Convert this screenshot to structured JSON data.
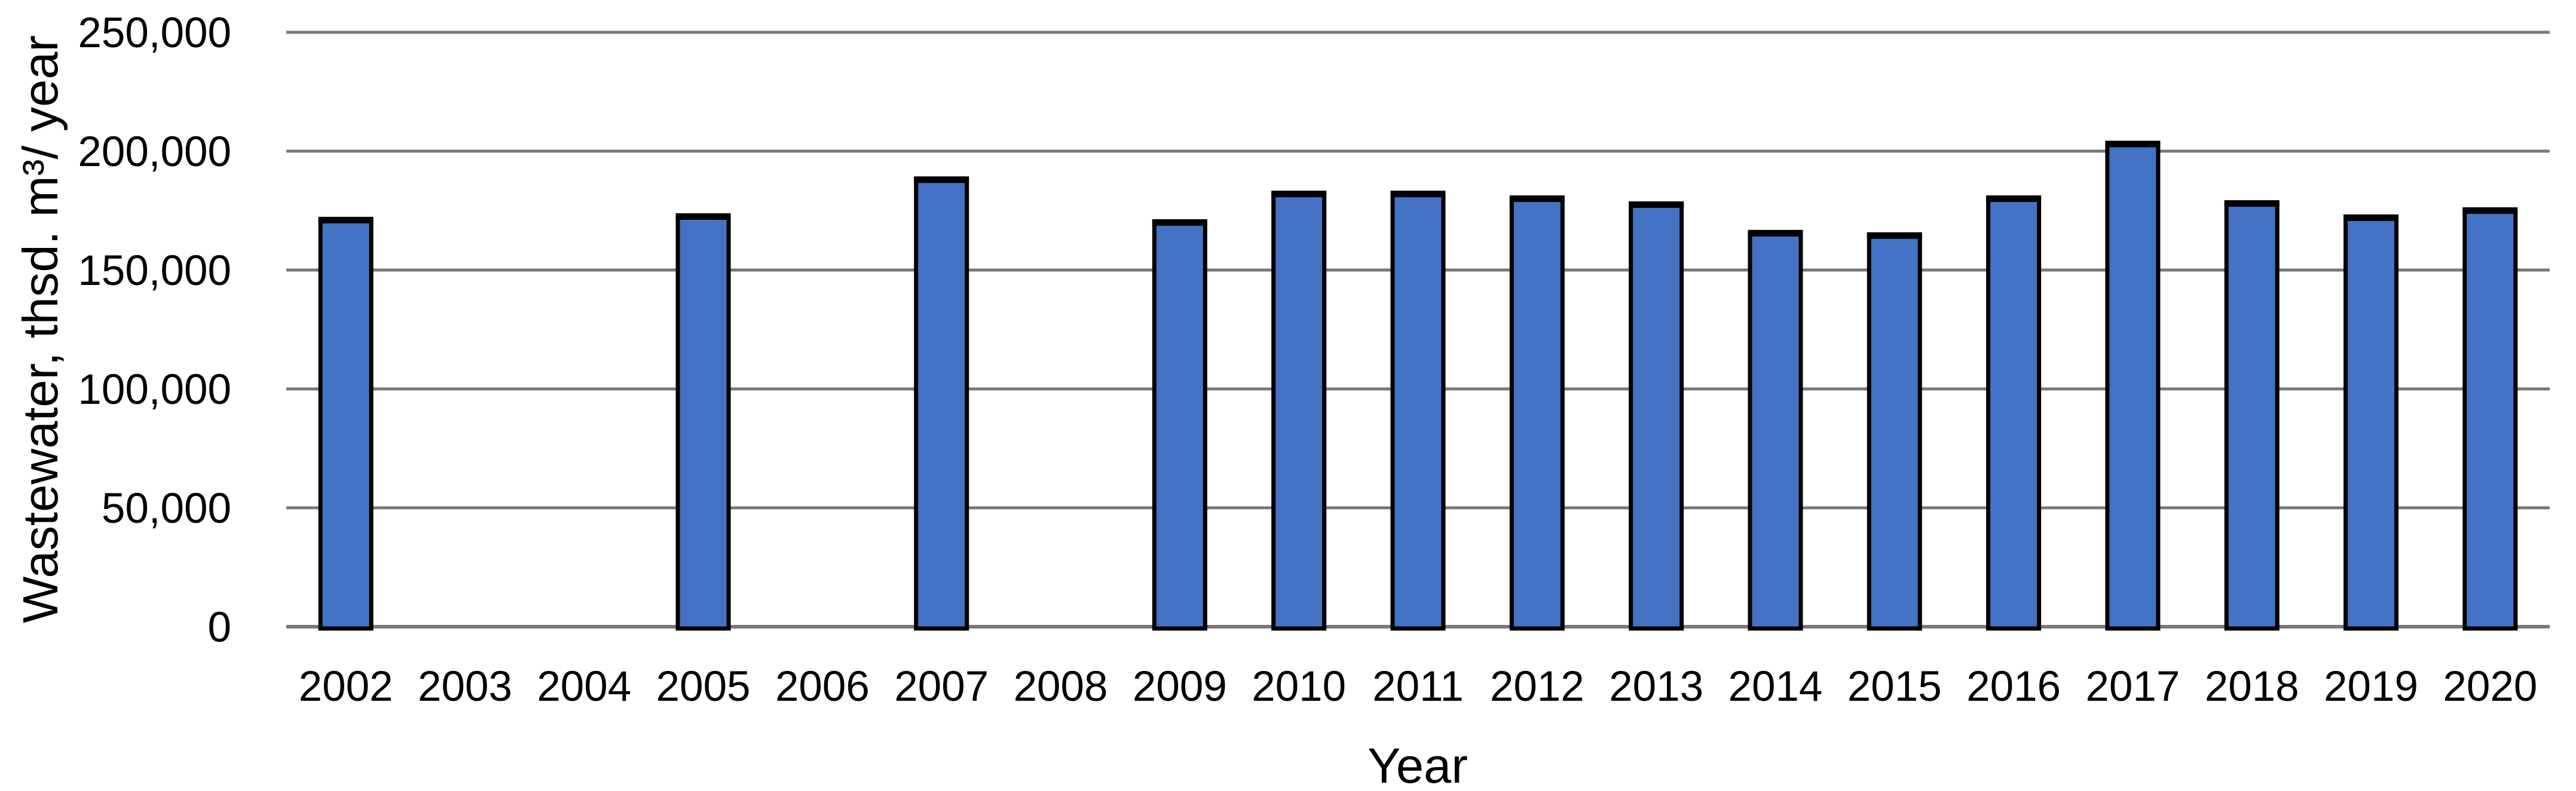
{
  "chart_data": {
    "type": "bar",
    "title": "",
    "xlabel": "Year",
    "ylabel": "Wastewater, thsd. m³/ year",
    "categories": [
      "2002",
      "2003",
      "2004",
      "2005",
      "2006",
      "2007",
      "2008",
      "2009",
      "2010",
      "2011",
      "2012",
      "2013",
      "2014",
      "2015",
      "2016",
      "2017",
      "2018",
      "2019",
      "2020"
    ],
    "values": [
      171000,
      null,
      null,
      172500,
      null,
      188000,
      null,
      170000,
      182000,
      182000,
      180000,
      177500,
      165500,
      164500,
      180000,
      203000,
      178000,
      172000,
      175000
    ],
    "ylim": [
      0,
      250000
    ],
    "ytick_interval": 50000,
    "ytick_labels": [
      "0",
      "50,000",
      "100,000",
      "150,000",
      "200,000",
      "250,000"
    ],
    "grid": "horizontal-gridlines-on",
    "legend": "none",
    "colors": {
      "bar_fill": "#4472C4",
      "bar_border": "#000000",
      "gridline": "#787878",
      "axis_line": "#787878",
      "text": "#000000",
      "background": "#FFFFFF"
    }
  }
}
